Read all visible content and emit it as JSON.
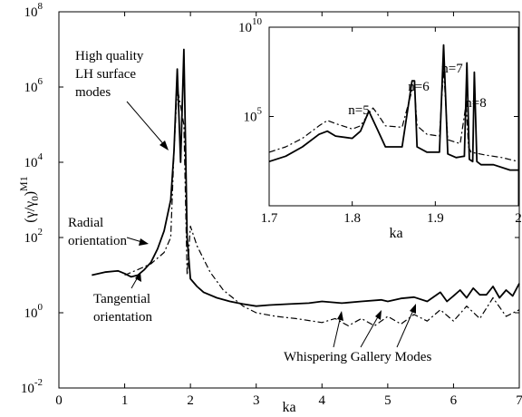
{
  "chart_data": [
    {
      "type": "line",
      "panel": "main",
      "xlabel": "ka",
      "ylabel": "(γ/γ0)M1",
      "ylabel_parts": {
        "base": "(γ/γ",
        "sub": "0",
        "close": ")",
        "sup": "M1"
      },
      "xlim": [
        0,
        7
      ],
      "ylim_log10": [
        -2,
        8
      ],
      "yscale": "log",
      "grid": false,
      "x_ticks": [
        "0",
        "1",
        "2",
        "3",
        "4",
        "5",
        "6",
        "7"
      ],
      "y_ticks": [
        {
          "base": "10",
          "exp": "-2"
        },
        {
          "base": "10",
          "exp": "0"
        },
        {
          "base": "10",
          "exp": "2"
        },
        {
          "base": "10",
          "exp": "4"
        },
        {
          "base": "10",
          "exp": "6"
        },
        {
          "base": "10",
          "exp": "8"
        }
      ],
      "series": [
        {
          "style": "solid",
          "x": [
            0.5,
            0.7,
            0.9,
            1.0,
            1.1,
            1.2,
            1.3,
            1.4,
            1.5,
            1.6,
            1.7,
            1.75,
            1.8,
            1.85,
            1.9,
            1.95,
            2.0,
            2.1,
            2.2,
            2.4,
            2.6,
            2.8,
            3.0,
            3.2,
            3.5,
            3.8,
            4.0,
            4.3,
            4.6,
            4.9,
            5.0,
            5.2,
            5.4,
            5.6,
            5.8,
            5.9,
            6.0,
            6.1,
            6.2,
            6.3,
            6.4,
            6.5,
            6.6,
            6.7,
            6.8,
            6.9,
            7.0
          ],
          "y": [
            10,
            12,
            13,
            11,
            9,
            10,
            14,
            22,
            50,
            150,
            1000,
            20000,
            3000000,
            10000,
            10000000,
            100,
            8,
            5,
            3.5,
            2.5,
            2.0,
            1.7,
            1.5,
            1.6,
            1.7,
            1.8,
            2.0,
            1.8,
            2.0,
            2.2,
            2.0,
            2.4,
            2.6,
            2.0,
            3.5,
            2.0,
            2.8,
            4.0,
            2.5,
            4.5,
            3.0,
            3.0,
            5.0,
            2.5,
            4.0,
            2.8,
            6.0
          ]
        },
        {
          "style": "dash-dot",
          "x": [
            1.0,
            1.2,
            1.4,
            1.6,
            1.7,
            1.75,
            1.8,
            1.9,
            1.95,
            2.0,
            2.1,
            2.3,
            2.5,
            2.8,
            3.0,
            3.3,
            3.6,
            4.0,
            4.2,
            4.4,
            4.6,
            4.8,
            5.0,
            5.2,
            5.4,
            5.6,
            5.8,
            6.0,
            6.2,
            6.4,
            6.6,
            6.8,
            7.0
          ],
          "y": [
            10,
            14,
            20,
            40,
            100,
            20000,
            1000000,
            100000,
            10,
            200,
            60,
            12,
            4,
            1.5,
            1.0,
            0.8,
            0.7,
            0.55,
            0.7,
            0.45,
            0.7,
            0.45,
            0.8,
            0.5,
            0.9,
            0.6,
            1.2,
            0.6,
            1.5,
            0.7,
            2.5,
            0.8,
            1.2
          ]
        }
      ],
      "annotations": {
        "high_quality": [
          "High quality",
          "LH surface",
          "modes"
        ],
        "radial": [
          "Radial",
          "orientation"
        ],
        "tangential": [
          "Tangential",
          "orientation"
        ],
        "whispering": "Whispering Gallery Modes"
      }
    },
    {
      "type": "line",
      "panel": "inset",
      "xlabel": "ka",
      "xlim": [
        1.7,
        2.0
      ],
      "ylim_log10": [
        0,
        10
      ],
      "yscale": "log",
      "grid": false,
      "x_ticks": [
        "1.7",
        "1.8",
        "1.9",
        "2"
      ],
      "y_ticks": [
        {
          "base": "10",
          "exp": "5"
        },
        {
          "base": "10",
          "exp": "10"
        }
      ],
      "series": [
        {
          "style": "solid",
          "x": [
            1.7,
            1.72,
            1.74,
            1.76,
            1.77,
            1.78,
            1.8,
            1.81,
            1.82,
            1.83,
            1.84,
            1.86,
            1.872,
            1.875,
            1.878,
            1.89,
            1.905,
            1.91,
            1.915,
            1.925,
            1.935,
            1.938,
            1.941,
            1.945,
            1.947,
            1.95,
            1.955,
            1.97,
            1.99,
            2.0
          ],
          "y": [
            300,
            600,
            2000,
            10000,
            15000,
            8000,
            6000,
            15000,
            200000,
            20000,
            2000,
            2000,
            10000000,
            10000000,
            2000,
            1000,
            1000,
            1000000000,
            800,
            500,
            600,
            100000000,
            400,
            300,
            30000000,
            300,
            200,
            200,
            100,
            100
          ]
        },
        {
          "style": "dash-dot",
          "x": [
            1.7,
            1.72,
            1.74,
            1.76,
            1.77,
            1.78,
            1.8,
            1.81,
            1.82,
            1.825,
            1.83,
            1.84,
            1.86,
            1.872,
            1.875,
            1.878,
            1.89,
            1.905,
            1.91,
            1.915,
            1.93,
            1.937,
            1.94,
            1.943,
            1.96,
            1.98,
            2.0
          ],
          "y": [
            1000,
            2000,
            6000,
            30000,
            60000,
            40000,
            20000,
            30000,
            150000,
            300000,
            150000,
            30000,
            25000,
            3000000,
            4000000,
            30000,
            10000,
            8000,
            50000000,
            5000,
            3000,
            500000,
            2000,
            1000,
            700,
            500,
            300
          ]
        }
      ],
      "annotations": {
        "n5": "n=5",
        "n6": "n=6",
        "n7": "n=7",
        "n8": "n=8"
      }
    }
  ]
}
